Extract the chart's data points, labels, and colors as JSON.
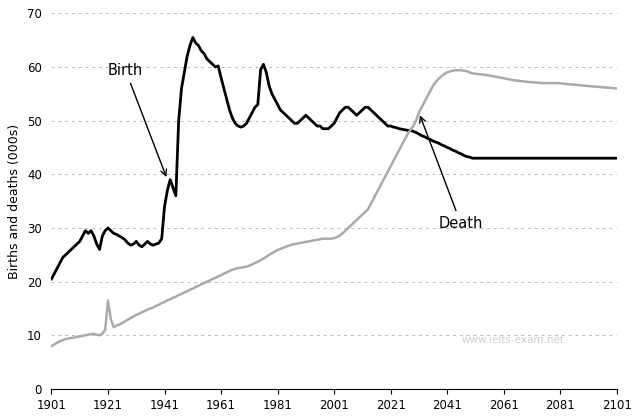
{
  "ylabel": "Births and deaths (000s)",
  "xlim": [
    1901,
    2101
  ],
  "ylim": [
    0,
    70
  ],
  "yticks": [
    0,
    10,
    20,
    30,
    40,
    50,
    60,
    70
  ],
  "xticks": [
    1901,
    1921,
    1941,
    1961,
    1981,
    2001,
    2021,
    2041,
    2061,
    2081,
    2101
  ],
  "birth_color": "#000000",
  "death_color": "#aaaaaa",
  "background_color": "#ffffff",
  "watermark": "www.ielts-exam.net",
  "birth_label": "Birth",
  "death_label": "Death",
  "birth_data": [
    [
      1901,
      20.5
    ],
    [
      1902,
      21.5
    ],
    [
      1903,
      22.5
    ],
    [
      1904,
      23.5
    ],
    [
      1905,
      24.5
    ],
    [
      1906,
      25.0
    ],
    [
      1907,
      25.5
    ],
    [
      1908,
      26.0
    ],
    [
      1909,
      26.5
    ],
    [
      1910,
      27.0
    ],
    [
      1911,
      27.5
    ],
    [
      1912,
      28.5
    ],
    [
      1913,
      29.5
    ],
    [
      1914,
      29.0
    ],
    [
      1915,
      29.5
    ],
    [
      1916,
      28.5
    ],
    [
      1917,
      27.0
    ],
    [
      1918,
      26.0
    ],
    [
      1919,
      28.5
    ],
    [
      1920,
      29.5
    ],
    [
      1921,
      30.0
    ],
    [
      1922,
      29.5
    ],
    [
      1923,
      29.0
    ],
    [
      1924,
      28.8
    ],
    [
      1925,
      28.5
    ],
    [
      1926,
      28.2
    ],
    [
      1927,
      27.8
    ],
    [
      1928,
      27.2
    ],
    [
      1929,
      26.8
    ],
    [
      1930,
      27.0
    ],
    [
      1931,
      27.5
    ],
    [
      1932,
      26.8
    ],
    [
      1933,
      26.5
    ],
    [
      1934,
      27.0
    ],
    [
      1935,
      27.5
    ],
    [
      1936,
      27.0
    ],
    [
      1937,
      26.8
    ],
    [
      1938,
      27.0
    ],
    [
      1939,
      27.2
    ],
    [
      1940,
      28.0
    ],
    [
      1941,
      34.0
    ],
    [
      1942,
      37.0
    ],
    [
      1943,
      39.0
    ],
    [
      1944,
      37.5
    ],
    [
      1945,
      36.0
    ],
    [
      1946,
      50.0
    ],
    [
      1947,
      56.0
    ],
    [
      1948,
      59.0
    ],
    [
      1949,
      62.0
    ],
    [
      1950,
      64.0
    ],
    [
      1951,
      65.5
    ],
    [
      1952,
      64.5
    ],
    [
      1953,
      64.0
    ],
    [
      1954,
      63.0
    ],
    [
      1955,
      62.5
    ],
    [
      1956,
      61.5
    ],
    [
      1957,
      61.0
    ],
    [
      1958,
      60.5
    ],
    [
      1959,
      60.0
    ],
    [
      1960,
      60.2
    ],
    [
      1961,
      58.0
    ],
    [
      1962,
      56.0
    ],
    [
      1963,
      54.0
    ],
    [
      1964,
      52.0
    ],
    [
      1965,
      50.5
    ],
    [
      1966,
      49.5
    ],
    [
      1967,
      49.0
    ],
    [
      1968,
      48.8
    ],
    [
      1969,
      49.0
    ],
    [
      1970,
      49.5
    ],
    [
      1971,
      50.5
    ],
    [
      1972,
      51.5
    ],
    [
      1973,
      52.5
    ],
    [
      1974,
      53.0
    ],
    [
      1975,
      59.5
    ],
    [
      1976,
      60.5
    ],
    [
      1977,
      59.0
    ],
    [
      1978,
      56.5
    ],
    [
      1979,
      55.0
    ],
    [
      1980,
      54.0
    ],
    [
      1981,
      53.0
    ],
    [
      1982,
      52.0
    ],
    [
      1983,
      51.5
    ],
    [
      1984,
      51.0
    ],
    [
      1985,
      50.5
    ],
    [
      1986,
      50.0
    ],
    [
      1987,
      49.5
    ],
    [
      1988,
      49.5
    ],
    [
      1989,
      50.0
    ],
    [
      1990,
      50.5
    ],
    [
      1991,
      51.0
    ],
    [
      1992,
      50.5
    ],
    [
      1993,
      50.0
    ],
    [
      1994,
      49.5
    ],
    [
      1995,
      49.0
    ],
    [
      1996,
      49.0
    ],
    [
      1997,
      48.5
    ],
    [
      1998,
      48.5
    ],
    [
      1999,
      48.5
    ],
    [
      2000,
      49.0
    ],
    [
      2001,
      49.5
    ],
    [
      2002,
      50.5
    ],
    [
      2003,
      51.5
    ],
    [
      2004,
      52.0
    ],
    [
      2005,
      52.5
    ],
    [
      2006,
      52.5
    ],
    [
      2007,
      52.0
    ],
    [
      2008,
      51.5
    ],
    [
      2009,
      51.0
    ],
    [
      2010,
      51.5
    ],
    [
      2011,
      52.0
    ],
    [
      2012,
      52.5
    ],
    [
      2013,
      52.5
    ],
    [
      2014,
      52.0
    ],
    [
      2015,
      51.5
    ],
    [
      2016,
      51.0
    ],
    [
      2017,
      50.5
    ],
    [
      2018,
      50.0
    ],
    [
      2019,
      49.5
    ],
    [
      2020,
      49.0
    ],
    [
      2021,
      49.0
    ],
    [
      2022,
      48.8
    ],
    [
      2023,
      48.7
    ],
    [
      2024,
      48.5
    ],
    [
      2025,
      48.4
    ],
    [
      2026,
      48.3
    ],
    [
      2027,
      48.2
    ],
    [
      2028,
      48.2
    ],
    [
      2029,
      48.0
    ],
    [
      2030,
      47.8
    ],
    [
      2031,
      47.5
    ],
    [
      2032,
      47.2
    ],
    [
      2033,
      47.0
    ],
    [
      2034,
      46.7
    ],
    [
      2035,
      46.5
    ],
    [
      2036,
      46.2
    ],
    [
      2037,
      46.0
    ],
    [
      2038,
      45.8
    ],
    [
      2039,
      45.5
    ],
    [
      2040,
      45.3
    ],
    [
      2041,
      45.0
    ],
    [
      2042,
      44.8
    ],
    [
      2043,
      44.5
    ],
    [
      2044,
      44.3
    ],
    [
      2045,
      44.0
    ],
    [
      2046,
      43.8
    ],
    [
      2047,
      43.5
    ],
    [
      2048,
      43.3
    ],
    [
      2049,
      43.2
    ],
    [
      2050,
      43.0
    ],
    [
      2060,
      43.0
    ],
    [
      2070,
      43.0
    ],
    [
      2080,
      43.0
    ],
    [
      2090,
      43.0
    ],
    [
      2101,
      43.0
    ]
  ],
  "death_data": [
    [
      1901,
      8.0
    ],
    [
      1902,
      8.3
    ],
    [
      1903,
      8.6
    ],
    [
      1904,
      8.9
    ],
    [
      1905,
      9.1
    ],
    [
      1906,
      9.3
    ],
    [
      1907,
      9.4
    ],
    [
      1908,
      9.5
    ],
    [
      1909,
      9.6
    ],
    [
      1910,
      9.7
    ],
    [
      1911,
      9.8
    ],
    [
      1912,
      9.9
    ],
    [
      1913,
      10.0
    ],
    [
      1914,
      10.1
    ],
    [
      1915,
      10.2
    ],
    [
      1916,
      10.3
    ],
    [
      1917,
      10.1
    ],
    [
      1918,
      10.0
    ],
    [
      1919,
      10.3
    ],
    [
      1920,
      11.0
    ],
    [
      1921,
      16.5
    ],
    [
      1922,
      13.0
    ],
    [
      1923,
      11.5
    ],
    [
      1924,
      11.8
    ],
    [
      1925,
      12.0
    ],
    [
      1926,
      12.3
    ],
    [
      1927,
      12.6
    ],
    [
      1928,
      12.9
    ],
    [
      1929,
      13.2
    ],
    [
      1930,
      13.5
    ],
    [
      1931,
      13.8
    ],
    [
      1932,
      14.0
    ],
    [
      1933,
      14.3
    ],
    [
      1934,
      14.5
    ],
    [
      1935,
      14.8
    ],
    [
      1936,
      15.0
    ],
    [
      1937,
      15.2
    ],
    [
      1938,
      15.5
    ],
    [
      1939,
      15.7
    ],
    [
      1940,
      16.0
    ],
    [
      1941,
      16.2
    ],
    [
      1942,
      16.5
    ],
    [
      1943,
      16.7
    ],
    [
      1944,
      17.0
    ],
    [
      1945,
      17.2
    ],
    [
      1946,
      17.5
    ],
    [
      1947,
      17.7
    ],
    [
      1948,
      18.0
    ],
    [
      1949,
      18.2
    ],
    [
      1950,
      18.5
    ],
    [
      1951,
      18.7
    ],
    [
      1952,
      19.0
    ],
    [
      1953,
      19.2
    ],
    [
      1954,
      19.5
    ],
    [
      1955,
      19.7
    ],
    [
      1956,
      20.0
    ],
    [
      1957,
      20.2
    ],
    [
      1958,
      20.5
    ],
    [
      1959,
      20.7
    ],
    [
      1960,
      21.0
    ],
    [
      1961,
      21.2
    ],
    [
      1962,
      21.5
    ],
    [
      1963,
      21.7
    ],
    [
      1964,
      22.0
    ],
    [
      1965,
      22.2
    ],
    [
      1966,
      22.4
    ],
    [
      1967,
      22.5
    ],
    [
      1968,
      22.6
    ],
    [
      1969,
      22.7
    ],
    [
      1970,
      22.8
    ],
    [
      1971,
      23.0
    ],
    [
      1972,
      23.2
    ],
    [
      1973,
      23.5
    ],
    [
      1974,
      23.7
    ],
    [
      1975,
      24.0
    ],
    [
      1976,
      24.3
    ],
    [
      1977,
      24.6
    ],
    [
      1978,
      25.0
    ],
    [
      1979,
      25.3
    ],
    [
      1980,
      25.6
    ],
    [
      1981,
      25.9
    ],
    [
      1982,
      26.1
    ],
    [
      1983,
      26.3
    ],
    [
      1984,
      26.5
    ],
    [
      1985,
      26.7
    ],
    [
      1986,
      26.9
    ],
    [
      1987,
      27.0
    ],
    [
      1988,
      27.1
    ],
    [
      1989,
      27.2
    ],
    [
      1990,
      27.3
    ],
    [
      1991,
      27.4
    ],
    [
      1992,
      27.5
    ],
    [
      1993,
      27.6
    ],
    [
      1994,
      27.7
    ],
    [
      1995,
      27.8
    ],
    [
      1996,
      27.9
    ],
    [
      1997,
      28.0
    ],
    [
      1998,
      28.0
    ],
    [
      1999,
      28.0
    ],
    [
      2000,
      28.0
    ],
    [
      2001,
      28.1
    ],
    [
      2002,
      28.3
    ],
    [
      2003,
      28.6
    ],
    [
      2004,
      29.0
    ],
    [
      2005,
      29.5
    ],
    [
      2006,
      30.0
    ],
    [
      2007,
      30.5
    ],
    [
      2008,
      31.0
    ],
    [
      2009,
      31.5
    ],
    [
      2010,
      32.0
    ],
    [
      2011,
      32.5
    ],
    [
      2012,
      33.0
    ],
    [
      2013,
      33.5
    ],
    [
      2014,
      34.5
    ],
    [
      2015,
      35.5
    ],
    [
      2016,
      36.5
    ],
    [
      2017,
      37.5
    ],
    [
      2018,
      38.5
    ],
    [
      2019,
      39.5
    ],
    [
      2020,
      40.5
    ],
    [
      2021,
      41.5
    ],
    [
      2022,
      42.5
    ],
    [
      2023,
      43.5
    ],
    [
      2024,
      44.5
    ],
    [
      2025,
      45.5
    ],
    [
      2026,
      46.5
    ],
    [
      2027,
      47.5
    ],
    [
      2028,
      48.3
    ],
    [
      2029,
      49.0
    ],
    [
      2030,
      50.0
    ],
    [
      2031,
      51.5
    ],
    [
      2032,
      52.5
    ],
    [
      2033,
      53.5
    ],
    [
      2034,
      54.5
    ],
    [
      2035,
      55.5
    ],
    [
      2036,
      56.5
    ],
    [
      2037,
      57.2
    ],
    [
      2038,
      57.8
    ],
    [
      2039,
      58.3
    ],
    [
      2040,
      58.7
    ],
    [
      2041,
      59.0
    ],
    [
      2042,
      59.2
    ],
    [
      2043,
      59.3
    ],
    [
      2044,
      59.4
    ],
    [
      2045,
      59.4
    ],
    [
      2046,
      59.4
    ],
    [
      2047,
      59.3
    ],
    [
      2048,
      59.2
    ],
    [
      2049,
      59.0
    ],
    [
      2050,
      58.8
    ],
    [
      2055,
      58.5
    ],
    [
      2060,
      58.0
    ],
    [
      2065,
      57.5
    ],
    [
      2070,
      57.2
    ],
    [
      2075,
      57.0
    ],
    [
      2080,
      57.0
    ],
    [
      2090,
      56.5
    ],
    [
      2101,
      56.0
    ]
  ]
}
